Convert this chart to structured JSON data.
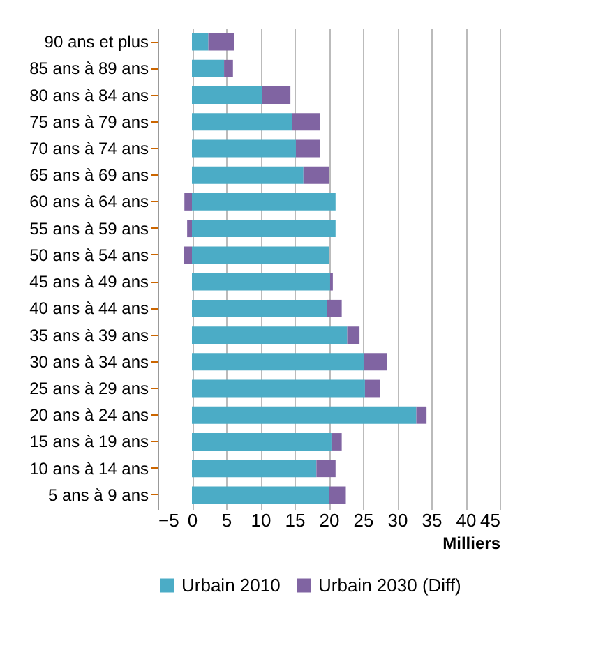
{
  "chart_data": {
    "type": "bar",
    "orientation": "horizontal",
    "stacked": true,
    "xlabel": "Milliers",
    "categories": [
      "90 ans et plus",
      "85 ans à 89 ans",
      "80 ans à 84 ans",
      "75 ans à 79 ans",
      "70 ans à 74 ans",
      "65 ans à 69 ans",
      "60 ans à 64 ans",
      "55 ans à 59 ans",
      "50 ans à 54 ans",
      "45 ans à 49 ans",
      "40 ans à 44 ans",
      "35 ans à 39 ans",
      "30 ans à 34 ans",
      "25 ans à 29 ans",
      "20 ans à 24 ans",
      "15 ans à 19 ans",
      "10 ans à 14 ans",
      "5 ans à 9 ans"
    ],
    "series": [
      {
        "name": "Urbain 2010",
        "color": "#4bacc6",
        "values": [
          2.4,
          4.7,
          10.3,
          14.6,
          15.2,
          16.3,
          21.0,
          21.0,
          20.0,
          20.2,
          19.7,
          22.7,
          25.1,
          25.3,
          32.8,
          20.4,
          18.2,
          20.0
        ]
      },
      {
        "name": "Urbain 2030 (Diff)",
        "color": "#8064a2",
        "values": [
          3.8,
          1.3,
          4.1,
          4.1,
          3.5,
          3.7,
          -1.1,
          -0.7,
          -1.2,
          0.4,
          2.2,
          1.8,
          3.4,
          2.2,
          1.5,
          1.5,
          2.8,
          2.5
        ]
      }
    ],
    "xlim": [
      -5,
      45
    ],
    "xticks": [
      -5,
      0,
      5,
      10,
      15,
      20,
      25,
      30,
      35,
      40,
      45
    ],
    "grid": "x",
    "legend": "bottom"
  }
}
